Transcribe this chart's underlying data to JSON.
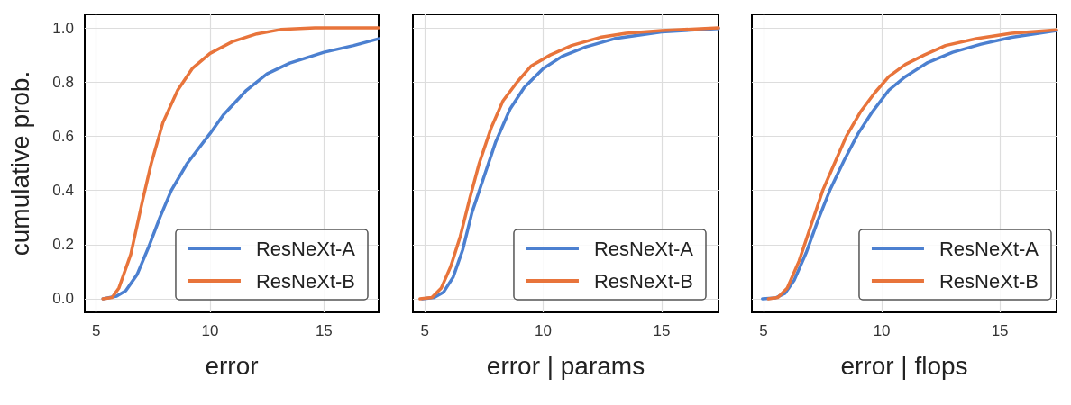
{
  "chart_data": [
    {
      "type": "line",
      "xlabel": "error",
      "ylabel": "cumulative prob.",
      "xlim": [
        4.5,
        17.4
      ],
      "ylim": [
        -0.05,
        1.05
      ],
      "xticks": [
        5,
        10,
        15
      ],
      "yticks": [
        {
          "value": 0,
          "label": "0.0"
        },
        0.2,
        0.4,
        0.6,
        0.8,
        {
          "value": 1,
          "label": "1.0"
        }
      ],
      "grid": true,
      "legend": "bottom right",
      "series": [
        {
          "name": "ResNeXt-A",
          "color": "#4c80d0",
          "x": [
            5.3,
            5.9,
            6.3,
            6.8,
            7.3,
            7.8,
            8.3,
            9.0,
            10.0,
            10.6,
            11.6,
            12.5,
            13.5,
            15.0,
            16.3,
            17.4
          ],
          "values": [
            0,
            0.01,
            0.03,
            0.09,
            0.19,
            0.3,
            0.4,
            0.5,
            0.61,
            0.68,
            0.77,
            0.83,
            0.87,
            0.91,
            0.935,
            0.96
          ]
        },
        {
          "name": "ResNeXt-B",
          "color": "#e8743b",
          "x": [
            5.3,
            5.7,
            6.0,
            6.52,
            7.03,
            7.42,
            7.93,
            8.58,
            9.22,
            10.0,
            11.0,
            12.05,
            13.1,
            14.6,
            17.4
          ],
          "values": [
            0,
            0.005,
            0.04,
            0.164,
            0.36,
            0.5,
            0.65,
            0.77,
            0.85,
            0.906,
            0.95,
            0.978,
            0.994,
            1.0,
            1.0
          ]
        }
      ]
    },
    {
      "type": "line",
      "xlabel": "error | params",
      "xlim": [
        4.5,
        17.4
      ],
      "ylim": [
        -0.05,
        1.05
      ],
      "xticks": [
        5,
        10,
        15
      ],
      "yticks": [
        0,
        0.2,
        0.4,
        0.6,
        0.8,
        1
      ],
      "tick_labels": "x",
      "grid": true,
      "legend": "bottom right",
      "series": [
        {
          "name": "ResNeXt-A",
          "color": "#4c80d0",
          "x": [
            4.9,
            5.4,
            5.8,
            6.2,
            6.6,
            7.0,
            7.5,
            8.0,
            8.6,
            9.2,
            10.0,
            10.8,
            11.8,
            13.0,
            15.0,
            17.4
          ],
          "values": [
            0,
            0.005,
            0.025,
            0.08,
            0.18,
            0.32,
            0.45,
            0.58,
            0.7,
            0.78,
            0.85,
            0.895,
            0.93,
            0.96,
            0.985,
            0.998
          ]
        },
        {
          "name": "ResNeXt-B",
          "color": "#e8743b",
          "x": [
            4.8,
            5.3,
            5.7,
            6.1,
            6.5,
            6.9,
            7.3,
            7.8,
            8.3,
            8.9,
            9.5,
            10.3,
            11.2,
            12.4,
            13.5,
            15.0,
            17.4
          ],
          "values": [
            0,
            0.005,
            0.04,
            0.12,
            0.23,
            0.37,
            0.5,
            0.63,
            0.73,
            0.8,
            0.86,
            0.9,
            0.935,
            0.965,
            0.98,
            0.99,
            1.0
          ]
        }
      ]
    },
    {
      "type": "line",
      "xlabel": "error | flops",
      "xlim": [
        4.5,
        17.4
      ],
      "ylim": [
        -0.05,
        1.05
      ],
      "xticks": [
        5,
        10,
        15
      ],
      "yticks": [
        0,
        0.2,
        0.4,
        0.6,
        0.8,
        1
      ],
      "tick_labels": "x",
      "grid": true,
      "legend": "bottom right",
      "series": [
        {
          "name": "ResNeXt-A",
          "color": "#4c80d0",
          "x": [
            4.95,
            5.5,
            5.9,
            6.3,
            6.8,
            7.3,
            7.8,
            8.4,
            9.0,
            9.6,
            10.3,
            11.0,
            11.9,
            13.0,
            14.2,
            15.5,
            17.4
          ],
          "values": [
            0,
            0.003,
            0.02,
            0.07,
            0.17,
            0.29,
            0.4,
            0.51,
            0.61,
            0.69,
            0.77,
            0.82,
            0.87,
            0.91,
            0.94,
            0.965,
            0.99
          ]
        },
        {
          "name": "ResNeXt-B",
          "color": "#e8743b",
          "x": [
            5.2,
            5.6,
            6.0,
            6.5,
            7.0,
            7.5,
            8.0,
            8.5,
            9.1,
            9.7,
            10.3,
            11.0,
            11.8,
            12.7,
            14.0,
            15.5,
            17.4
          ],
          "values": [
            0,
            0.005,
            0.04,
            0.14,
            0.27,
            0.4,
            0.5,
            0.6,
            0.69,
            0.76,
            0.82,
            0.865,
            0.9,
            0.935,
            0.96,
            0.98,
            0.993
          ]
        }
      ]
    }
  ]
}
